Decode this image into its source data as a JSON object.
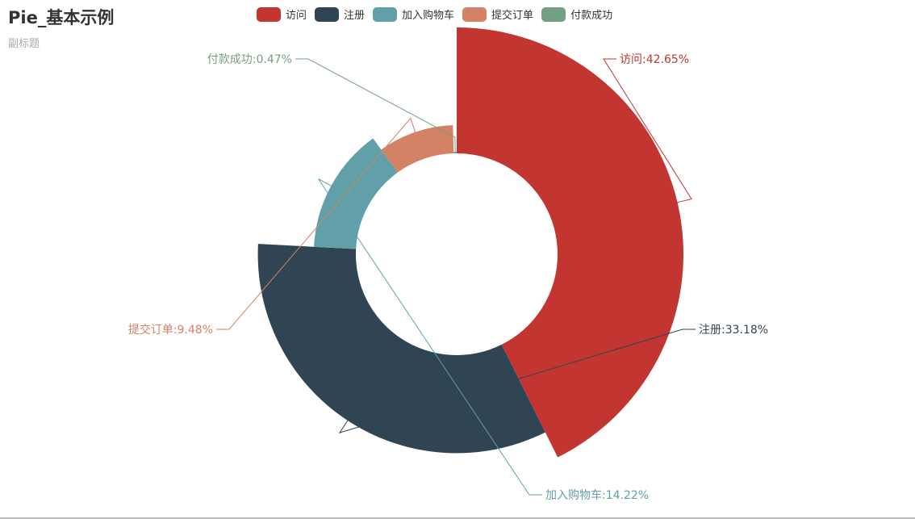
{
  "title": "Pie_基本示例",
  "subtitle": "副标题",
  "legend": [
    "访问",
    "注册",
    "加入购物车",
    "提交订单",
    "付款成功"
  ],
  "chart_data": {
    "type": "pie",
    "variant": "rose-radius",
    "legend_position": "top-center",
    "slices": [
      {
        "name": "访问",
        "value": 42.65,
        "label": "访问:42.65%",
        "color": "#c23531"
      },
      {
        "name": "注册",
        "value": 33.18,
        "label": "注册:33.18%",
        "color": "#2f4554"
      },
      {
        "name": "加入购物车",
        "value": 14.22,
        "label": "加入购物车:14.22%",
        "color": "#61a0a8"
      },
      {
        "name": "提交订单",
        "value": 9.48,
        "label": "提交订单:9.48%",
        "color": "#d48265"
      },
      {
        "name": "付款成功",
        "value": 0.47,
        "label": "付款成功:0.47%",
        "color": "#749f83"
      }
    ]
  }
}
